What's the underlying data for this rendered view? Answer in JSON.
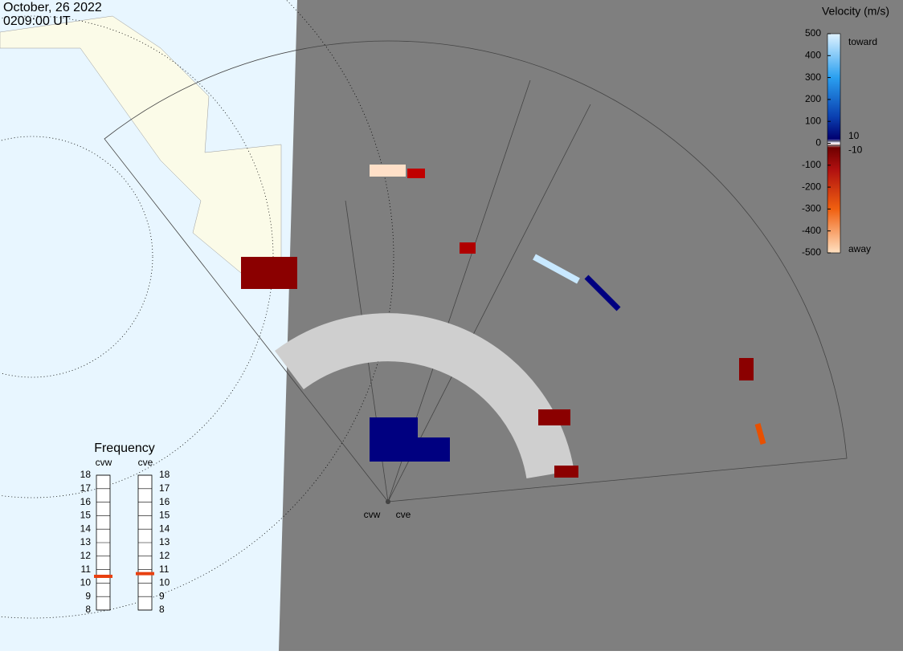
{
  "date": "October, 26 2022",
  "time": "0209:00 UT",
  "colorbar": {
    "title": "Velocity (m/s)",
    "ticks": [
      500,
      400,
      300,
      200,
      100,
      0,
      -100,
      -200,
      -300,
      -400,
      -500
    ],
    "lim": [
      -500,
      500
    ],
    "thresholds": [
      10,
      -10
    ],
    "toward": "toward",
    "away": "away"
  },
  "frequency": {
    "title": "Frequency",
    "lim": [
      8,
      18
    ],
    "ticks": [
      18,
      17,
      16,
      15,
      14,
      13,
      12,
      11,
      10,
      9,
      8
    ],
    "radars": [
      {
        "name": "cvw",
        "value": 10.5
      },
      {
        "name": "cve",
        "value": 10.7
      }
    ]
  },
  "sites": [
    "cvw",
    "cve"
  ]
}
